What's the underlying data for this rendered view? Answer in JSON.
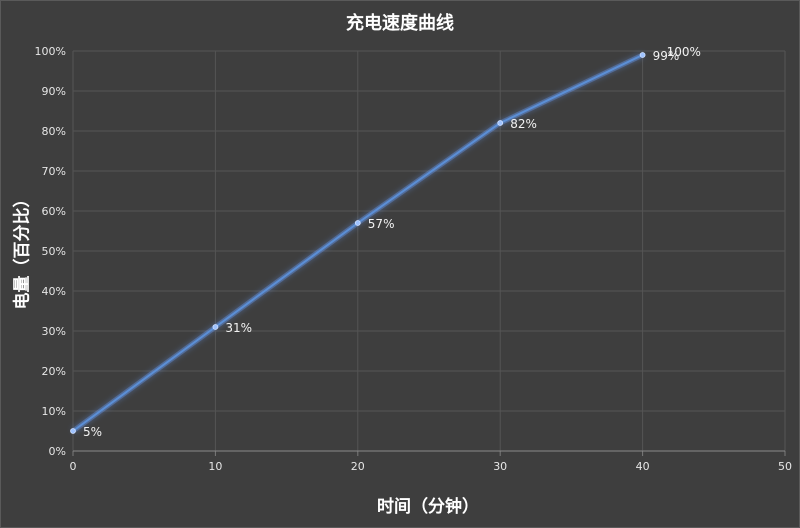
{
  "chart_data": {
    "type": "line",
    "title": "充电速度曲线",
    "xlabel": "时间（分钟）",
    "ylabel": "电量（百分比）",
    "x": [
      0,
      10,
      20,
      30,
      40
    ],
    "y": [
      5,
      31,
      57,
      82,
      99
    ],
    "data_labels": [
      "5%",
      "31%",
      "57%",
      "82%",
      "99%"
    ],
    "extra_annotation": "100%",
    "xlim": [
      0,
      50
    ],
    "ylim": [
      0,
      100
    ],
    "x_ticks": [
      0,
      10,
      20,
      30,
      40,
      50
    ],
    "x_tick_labels": [
      "0",
      "10",
      "20",
      "30",
      "40",
      "50"
    ],
    "y_ticks": [
      0,
      10,
      20,
      30,
      40,
      50,
      60,
      70,
      80,
      90,
      100
    ],
    "y_tick_labels": [
      "0%",
      "10%",
      "20%",
      "30%",
      "40%",
      "50%",
      "60%",
      "70%",
      "80%",
      "90%",
      "100%"
    ],
    "grid": true,
    "legend": "none",
    "colors": {
      "background": "#3e3e3e",
      "grid": "#555555",
      "line": "#5b8fd6",
      "glow": "#6aa0ff",
      "text": "#ffffff"
    }
  }
}
